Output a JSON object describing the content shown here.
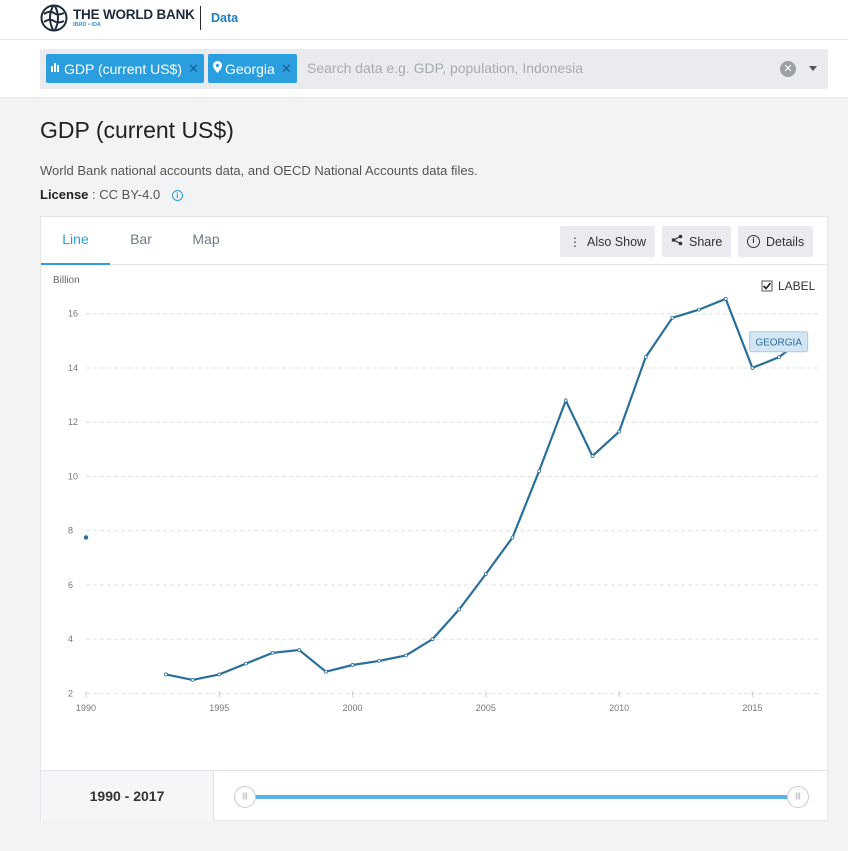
{
  "header": {
    "logo_main": "THE WORLD BANK",
    "logo_sub": "IBRD • IDA",
    "nav_data": "Data"
  },
  "search": {
    "tags": [
      {
        "label": "GDP (current US$)",
        "icon": "bar-chart-icon"
      },
      {
        "label": "Georgia",
        "icon": "location-pin-icon"
      }
    ],
    "placeholder": "Search data e.g. GDP, population, Indonesia"
  },
  "indicator": {
    "title": "GDP (current US$)",
    "source": "World Bank national accounts data, and OECD National Accounts data files.",
    "license_label": "License",
    "license_value": ": CC BY-4.0"
  },
  "tabs": [
    {
      "label": "Line",
      "active": true
    },
    {
      "label": "Bar",
      "active": false
    },
    {
      "label": "Map",
      "active": false
    }
  ],
  "actions": {
    "also_show": "Also Show",
    "share": "Share",
    "details": "Details"
  },
  "chart_toggle_label": "LABEL",
  "range_label": "1990 - 2017",
  "colors": {
    "accent": "#2b9ee0",
    "line": "#2a6f9b",
    "series_label_bg": "#d4e6f3"
  },
  "chart_data": {
    "type": "line",
    "title": "",
    "xlabel": "",
    "ylabel": "Billion",
    "ylim": [
      1.5,
      17.5
    ],
    "xlim": [
      1990,
      2017.5
    ],
    "yticks": [
      2,
      4,
      6,
      8,
      10,
      12,
      14,
      16
    ],
    "xticks": [
      1990,
      1995,
      2000,
      2005,
      2010,
      2015
    ],
    "grid": true,
    "series": [
      {
        "name": "GEORGIA",
        "x": [
          1990,
          1993,
          1994,
          1995,
          1996,
          1997,
          1998,
          1999,
          2000,
          2001,
          2002,
          2003,
          2004,
          2005,
          2006,
          2007,
          2008,
          2009,
          2010,
          2011,
          2012,
          2013,
          2014,
          2015,
          2016,
          2017
        ],
        "values": [
          7.75,
          2.7,
          2.5,
          2.7,
          3.1,
          3.5,
          3.6,
          2.8,
          3.05,
          3.2,
          3.4,
          4.0,
          5.1,
          6.4,
          7.75,
          10.2,
          12.8,
          10.75,
          11.65,
          14.4,
          15.85,
          16.15,
          16.55,
          14.0,
          14.4,
          15.15
        ]
      }
    ]
  }
}
